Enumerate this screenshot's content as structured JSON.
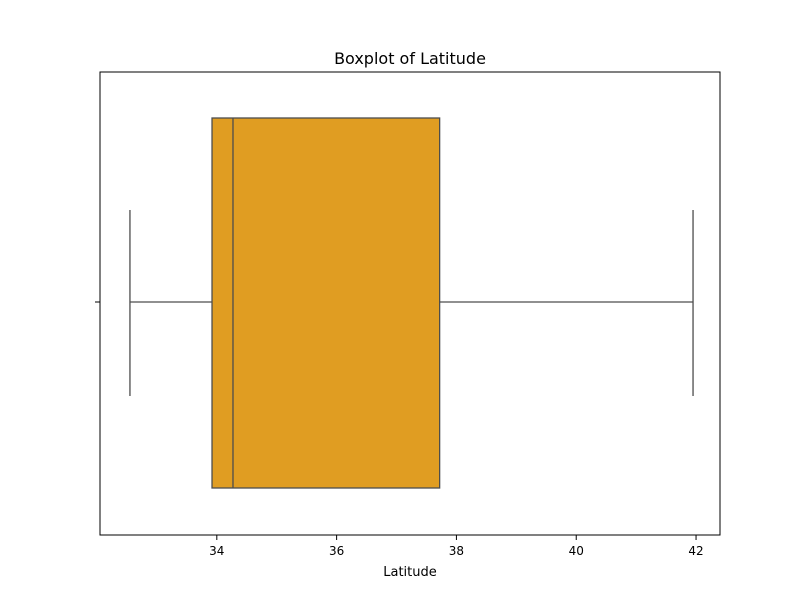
{
  "chart_data": {
    "type": "boxplot",
    "title": "Boxplot of Latitude",
    "xlabel": "Latitude",
    "ylabel": "",
    "xlim": [
      32.05,
      42.4
    ],
    "xticks": [
      34,
      36,
      38,
      40,
      42
    ],
    "grid": false,
    "box": {
      "whisker_low": 32.55,
      "q1": 33.92,
      "median": 34.27,
      "q3": 37.72,
      "whisker_high": 41.95
    },
    "colors": {
      "box_fill": "#E09D22",
      "line": "#4d4d4d",
      "axes": "#000000"
    }
  }
}
